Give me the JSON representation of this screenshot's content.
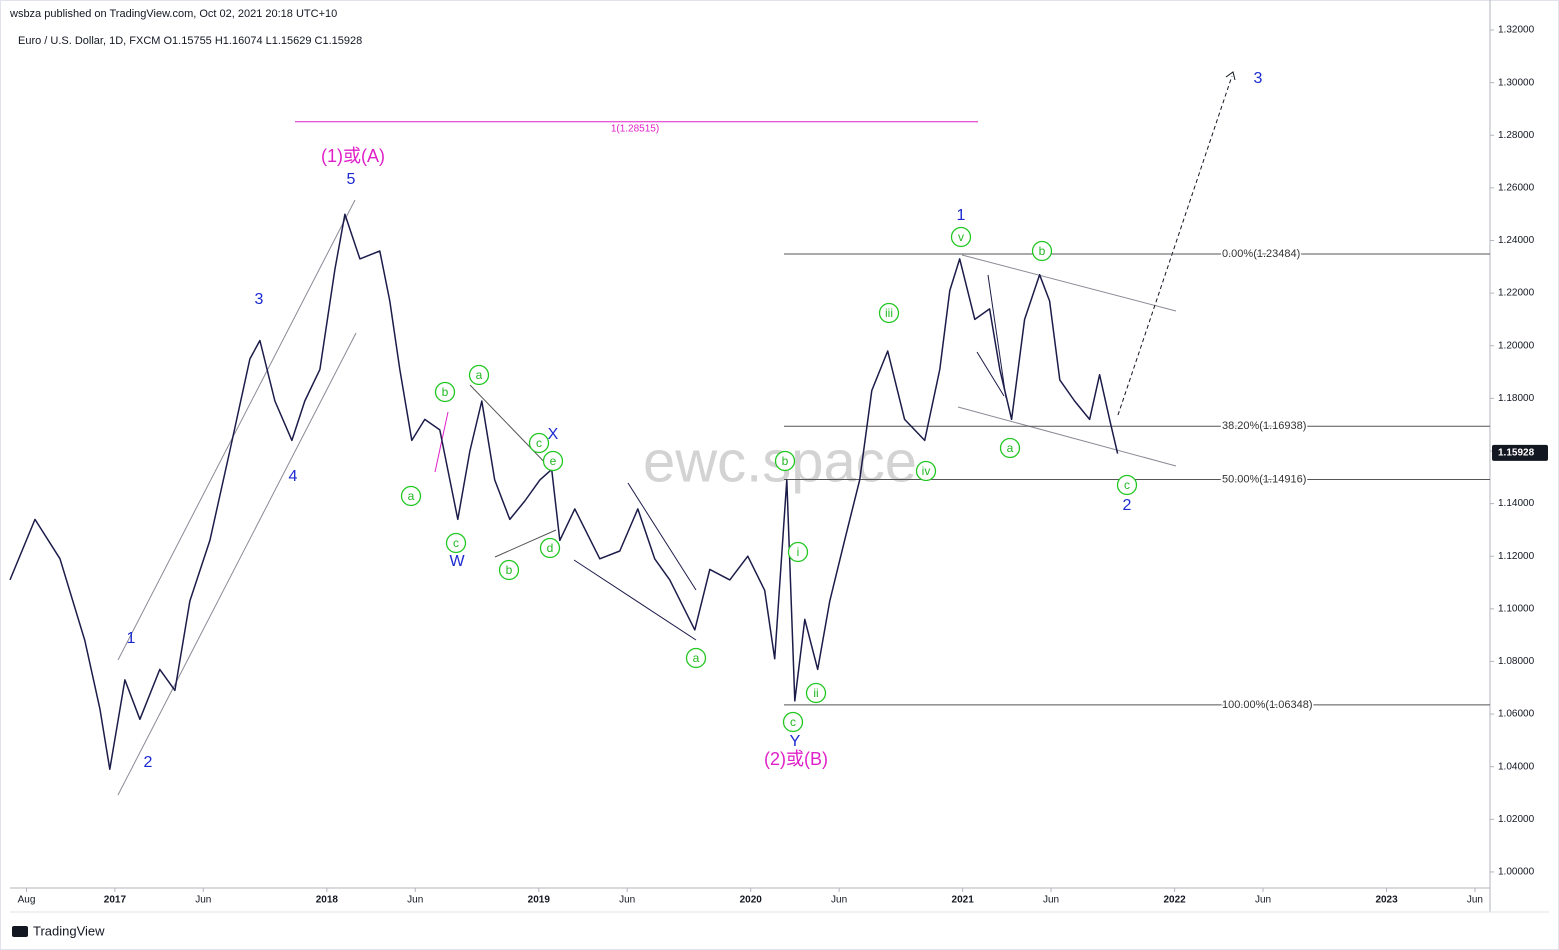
{
  "header": {
    "published": "wsbza published on TradingView.com, Oct 02, 2021 20:18 UTC+10",
    "symbol": "Euro / U.S. Dollar, 1D, FXCM  O1.15755  H1.16074  L1.15629  C1.15928"
  },
  "footer": {
    "brand": "TradingView"
  },
  "chart_data": {
    "type": "line",
    "watermark": "ewc.space",
    "color": "#1c1c4a",
    "x": [
      2016.505,
      2016.623,
      2016.741,
      2016.858,
      2016.929,
      2016.976,
      2017.047,
      2017.118,
      2017.212,
      2017.283,
      2017.354,
      2017.448,
      2017.542,
      2017.637,
      2017.684,
      2017.755,
      2017.835,
      2017.896,
      2017.967,
      2018.038,
      2018.085,
      2018.156,
      2018.25,
      2018.297,
      2018.344,
      2018.401,
      2018.462,
      2018.533,
      2018.618,
      2018.675,
      2018.731,
      2018.792,
      2018.863,
      2018.934,
      2019.005,
      2019.061,
      2019.099,
      2019.17,
      2019.288,
      2019.382,
      2019.467,
      2019.547,
      2019.618,
      2019.736,
      2019.807,
      2019.901,
      2019.986,
      2020.066,
      2020.113,
      2020.17,
      2020.208,
      2020.255,
      2020.316,
      2020.373,
      2020.443,
      2020.514,
      2020.571,
      2020.646,
      2020.726,
      2020.821,
      2020.892,
      2020.939,
      2020.986,
      2021.057,
      2021.127,
      2021.175,
      2021.231,
      2021.292,
      2021.363,
      2021.41,
      2021.458,
      2021.528,
      2021.599,
      2021.646,
      2021.693,
      2021.731
    ],
    "values": [
      1.111,
      1.134,
      1.119,
      1.088,
      1.062,
      1.039,
      1.073,
      1.058,
      1.077,
      1.069,
      1.103,
      1.126,
      1.16,
      1.195,
      1.202,
      1.179,
      1.164,
      1.179,
      1.191,
      1.229,
      1.25,
      1.233,
      1.236,
      1.217,
      1.191,
      1.164,
      1.172,
      1.168,
      1.134,
      1.16,
      1.179,
      1.149,
      1.134,
      1.141,
      1.149,
      1.153,
      1.126,
      1.138,
      1.119,
      1.122,
      1.138,
      1.119,
      1.111,
      1.092,
      1.115,
      1.111,
      1.12,
      1.107,
      1.081,
      1.149,
      1.065,
      1.096,
      1.077,
      1.103,
      1.126,
      1.149,
      1.183,
      1.198,
      1.172,
      1.164,
      1.191,
      1.221,
      1.233,
      1.21,
      1.214,
      1.191,
      1.172,
      1.21,
      1.227,
      1.217,
      1.187,
      1.179,
      1.172,
      1.189,
      1.172,
      1.159
    ],
    "xlim": [
      2016.505,
      2023.488
    ],
    "xticks": [
      {
        "value": 2016.583,
        "label": "Aug"
      },
      {
        "value": 2017,
        "label": "2017"
      },
      {
        "value": 2017.417,
        "label": "Jun"
      },
      {
        "value": 2018,
        "label": "2018"
      },
      {
        "value": 2018.417,
        "label": "Jun"
      },
      {
        "value": 2019,
        "label": "2019"
      },
      {
        "value": 2019.417,
        "label": "Jun"
      },
      {
        "value": 2020,
        "label": "2020"
      },
      {
        "value": 2020.417,
        "label": "Jun"
      },
      {
        "value": 2021,
        "label": "2021"
      },
      {
        "value": 2021.417,
        "label": "Jun"
      },
      {
        "value": 2022,
        "label": "2022"
      },
      {
        "value": 2022.417,
        "label": "Jun"
      },
      {
        "value": 2023,
        "label": "2023"
      },
      {
        "value": 2023.417,
        "label": "Jun"
      }
    ],
    "ylim": [
      0.9939,
      1.3314
    ],
    "yticks": [
      {
        "value": 1.0,
        "label": "1.00000"
      },
      {
        "value": 1.02,
        "label": "1.02000"
      },
      {
        "value": 1.04,
        "label": "1.04000"
      },
      {
        "value": 1.06,
        "label": "1.06000"
      },
      {
        "value": 1.08,
        "label": "1.08000"
      },
      {
        "value": 1.1,
        "label": "1.10000"
      },
      {
        "value": 1.12,
        "label": "1.12000"
      },
      {
        "value": 1.14,
        "label": "1.14000"
      },
      {
        "value": 1.16,
        "label": "1.16000"
      },
      {
        "value": 1.18,
        "label": "1.18000"
      },
      {
        "value": 1.2,
        "label": "1.20000"
      },
      {
        "value": 1.22,
        "label": "1.22000"
      },
      {
        "value": 1.24,
        "label": "1.24000"
      },
      {
        "value": 1.26,
        "label": "1.26000"
      },
      {
        "value": 1.28,
        "label": "1.28000"
      },
      {
        "value": 1.3,
        "label": "1.30000"
      },
      {
        "value": 1.32,
        "label": "1.32000"
      }
    ],
    "last_price": {
      "value": 1.15928,
      "label": "1.15928"
    },
    "fib_levels": [
      {
        "value": 1.23484,
        "label": "0.00%(1.23484)"
      },
      {
        "value": 1.16938,
        "label": "38.20%(1.16938)"
      },
      {
        "value": 1.14916,
        "label": "50.00%(1.14916)"
      },
      {
        "value": 1.06348,
        "label": "100.00%(1.06348)"
      }
    ],
    "target_level": {
      "value": 1.28515,
      "label": "1(1.28515)"
    },
    "annotations": [
      {
        "text": "(1)或(A)",
        "style": "magenta"
      },
      {
        "text": "5",
        "style": "blue"
      },
      {
        "text": "3",
        "style": "blue"
      },
      {
        "text": "4",
        "style": "blue"
      },
      {
        "text": "1",
        "style": "blue"
      },
      {
        "text": "2",
        "style": "blue"
      },
      {
        "text": "a",
        "style": "circle"
      },
      {
        "text": "b",
        "style": "circle"
      },
      {
        "text": "c",
        "style": "circle"
      },
      {
        "text": "W",
        "style": "blue"
      },
      {
        "text": "a",
        "style": "circle"
      },
      {
        "text": "b",
        "style": "circle"
      },
      {
        "text": "c",
        "style": "circle"
      },
      {
        "text": "X",
        "style": "blue"
      },
      {
        "text": "e",
        "style": "circle"
      },
      {
        "text": "d",
        "style": "circle"
      },
      {
        "text": "a",
        "style": "circle"
      },
      {
        "text": "b",
        "style": "circle"
      },
      {
        "text": "i",
        "style": "circle"
      },
      {
        "text": "ii",
        "style": "circle"
      },
      {
        "text": "c",
        "style": "circle"
      },
      {
        "text": "Y",
        "style": "blue"
      },
      {
        "text": "(2)或(B)",
        "style": "magenta"
      },
      {
        "text": "iii",
        "style": "circle"
      },
      {
        "text": "iv",
        "style": "circle"
      },
      {
        "text": "v",
        "style": "circle"
      },
      {
        "text": "1",
        "style": "blue"
      },
      {
        "text": "b",
        "style": "circle"
      },
      {
        "text": "a",
        "style": "circle"
      },
      {
        "text": "c",
        "style": "circle"
      },
      {
        "text": "2",
        "style": "blue"
      },
      {
        "text": "3",
        "style": "blue"
      }
    ]
  }
}
